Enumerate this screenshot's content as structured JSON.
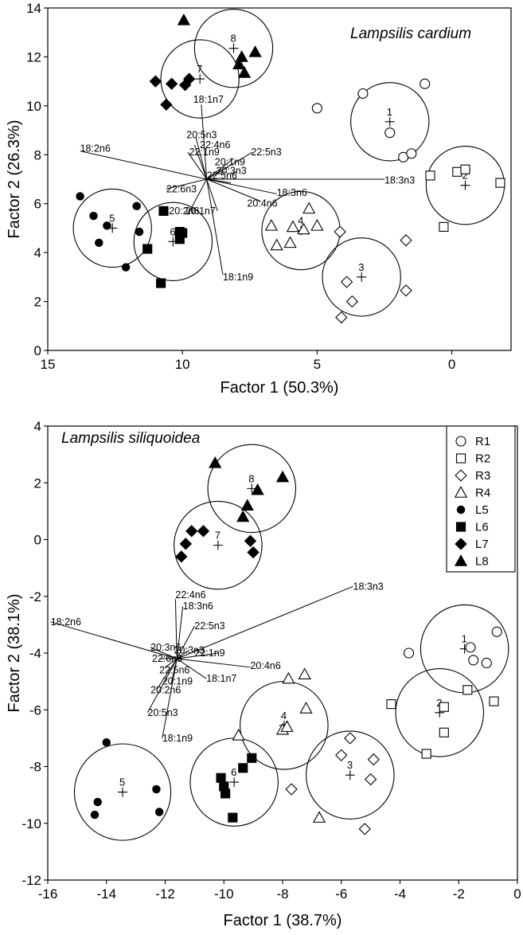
{
  "chart_data": [
    {
      "type": "scatter",
      "title": "Lampsilis cardium",
      "xlabel": "Factor 1 (50.3%)",
      "ylabel": "Factor 2 (26.3%)",
      "xlim": [
        15,
        -2.2
      ],
      "ylim": [
        0,
        14
      ],
      "xticks": [
        {
          "v": 15,
          "label": "15"
        },
        {
          "v": 10,
          "label": "10"
        },
        {
          "v": 5,
          "label": "5"
        },
        {
          "v": 0,
          "label": "0"
        }
      ],
      "yticks": [
        {
          "v": 0,
          "label": "0"
        },
        {
          "v": 2,
          "label": "2"
        },
        {
          "v": 4,
          "label": "4"
        },
        {
          "v": 6,
          "label": "6"
        },
        {
          "v": 8,
          "label": "8"
        },
        {
          "v": 10,
          "label": "10"
        },
        {
          "v": 12,
          "label": "12"
        },
        {
          "v": 14,
          "label": "14"
        }
      ],
      "series": [
        {
          "name": "R1",
          "marker": "circle-open",
          "points": [
            [
              5.0,
              9.9
            ],
            [
              3.3,
              10.5
            ],
            [
              1.0,
              10.9
            ],
            [
              1.8,
              7.9
            ],
            [
              1.5,
              8.05
            ],
            [
              2.3,
              8.9
            ]
          ]
        },
        {
          "name": "R2",
          "marker": "square-open",
          "points": [
            [
              0.8,
              7.15
            ],
            [
              -0.2,
              7.3
            ],
            [
              -0.5,
              7.4
            ],
            [
              -1.8,
              6.85
            ],
            [
              0.3,
              5.05
            ]
          ]
        },
        {
          "name": "R3",
          "marker": "diamond-open",
          "points": [
            [
              4.15,
              4.85
            ],
            [
              1.7,
              4.5
            ],
            [
              3.9,
              2.8
            ],
            [
              3.7,
              2.0
            ],
            [
              1.7,
              2.45
            ],
            [
              4.1,
              1.35
            ]
          ]
        },
        {
          "name": "R4",
          "marker": "triangle-open",
          "points": [
            [
              5.3,
              5.8
            ],
            [
              6.7,
              5.1
            ],
            [
              5.9,
              5.05
            ],
            [
              5.5,
              4.95
            ],
            [
              5.0,
              5.1
            ],
            [
              6.0,
              4.4
            ],
            [
              6.5,
              4.3
            ]
          ]
        },
        {
          "name": "L5",
          "marker": "circle-filled",
          "points": [
            [
              13.8,
              6.3
            ],
            [
              13.3,
              5.5
            ],
            [
              12.8,
              5.1
            ],
            [
              13.1,
              4.4
            ],
            [
              11.7,
              5.9
            ],
            [
              11.6,
              4.85
            ],
            [
              12.1,
              3.4
            ]
          ]
        },
        {
          "name": "L6",
          "marker": "square-filled",
          "points": [
            [
              10.7,
              5.7
            ],
            [
              10.1,
              4.85
            ],
            [
              10.0,
              4.8
            ],
            [
              10.1,
              4.55
            ],
            [
              11.3,
              4.15
            ],
            [
              10.8,
              2.75
            ]
          ]
        },
        {
          "name": "L7",
          "marker": "diamond-filled",
          "points": [
            [
              11.0,
              11.0
            ],
            [
              10.4,
              10.9
            ],
            [
              9.75,
              11.1
            ],
            [
              9.9,
              10.85
            ],
            [
              10.6,
              10.05
            ]
          ]
        },
        {
          "name": "L8",
          "marker": "triangle-filled",
          "points": [
            [
              9.95,
              13.5
            ],
            [
              7.3,
              12.2
            ],
            [
              7.8,
              12.0
            ],
            [
              7.9,
              11.7
            ],
            [
              7.7,
              11.35
            ]
          ]
        }
      ],
      "groups": [
        {
          "label": "1",
          "center": [
            2.3,
            9.35
          ],
          "radius": 1.6
        },
        {
          "label": "2",
          "center": [
            -0.5,
            6.75
          ],
          "radius": 1.6
        },
        {
          "label": "3",
          "center": [
            3.35,
            3.0
          ],
          "radius": 1.6
        },
        {
          "label": "4",
          "center": [
            5.6,
            4.9
          ],
          "radius": 1.6
        },
        {
          "label": "5",
          "center": [
            12.6,
            5.0
          ],
          "radius": 1.6
        },
        {
          "label": "6",
          "center": [
            10.35,
            4.45
          ],
          "radius": 1.6
        },
        {
          "label": "7",
          "center": [
            9.35,
            11.1
          ],
          "radius": 1.6
        },
        {
          "label": "8",
          "center": [
            8.1,
            12.35
          ],
          "radius": 1.6
        }
      ],
      "origin": [
        9.1,
        7.0
      ],
      "vectors": [
        {
          "label": "18:2n6",
          "end": [
            13.8,
            8.15
          ],
          "lpos": [
            13.8,
            8.25
          ]
        },
        {
          "label": "18:1n7",
          "end": [
            9.3,
            10.05
          ],
          "lpos": [
            9.6,
            10.25
          ]
        },
        {
          "label": "20:5n3",
          "end": [
            9.5,
            8.7
          ],
          "lpos": [
            9.85,
            8.8
          ]
        },
        {
          "label": "22:4n6",
          "end": [
            9.55,
            8.4
          ],
          "lpos": [
            9.35,
            8.4
          ]
        },
        {
          "label": "22:1n9",
          "end": [
            9.8,
            8.1
          ],
          "lpos": [
            9.75,
            8.1
          ]
        },
        {
          "label": "22:5n3",
          "end": [
            7.4,
            8.1
          ],
          "lpos": [
            7.45,
            8.1
          ]
        },
        {
          "label": "20:1n9",
          "end": [
            8.1,
            7.85
          ],
          "lpos": [
            8.8,
            7.7
          ]
        },
        {
          "label": "20:3n3",
          "end": [
            8.3,
            7.5
          ],
          "lpos": [
            8.75,
            7.35
          ]
        },
        {
          "label": "22:5n6",
          "end": [
            8.2,
            6.85
          ],
          "lpos": [
            9.1,
            7.15
          ]
        },
        {
          "label": "18:3n3",
          "end": [
            2.5,
            7.0
          ],
          "lpos": [
            2.5,
            6.95
          ]
        },
        {
          "label": "22:6n3",
          "end": [
            10.6,
            6.6
          ],
          "lpos": [
            10.6,
            6.6
          ]
        },
        {
          "label": "18:3n6",
          "end": [
            6.5,
            6.4
          ],
          "lpos": [
            6.5,
            6.45
          ]
        },
        {
          "label": "20:4n6",
          "end": [
            7.1,
            6.1
          ],
          "lpos": [
            7.6,
            6.0
          ]
        },
        {
          "label": "20:2n6",
          "end": [
            9.8,
            5.55
          ],
          "lpos": [
            10.5,
            5.7
          ]
        },
        {
          "label": "20:1n7",
          "end": [
            8.7,
            5.7
          ],
          "lpos": [
            9.9,
            5.7
          ]
        },
        {
          "label": "18:1n9",
          "end": [
            8.5,
            3.1
          ],
          "lpos": [
            8.5,
            3.0
          ]
        }
      ]
    },
    {
      "type": "scatter",
      "title": "Lampsilis siliquoidea",
      "xlabel": "Factor 1 (38.7%)",
      "ylabel": "Factor 2 (38.1%)",
      "xlim": [
        -16,
        0
      ],
      "ylim": [
        -12,
        4
      ],
      "xticks": [
        {
          "v": -16,
          "label": "-16"
        },
        {
          "v": -14,
          "label": "-14"
        },
        {
          "v": -12,
          "label": "-12"
        },
        {
          "v": -10,
          "label": "-10"
        },
        {
          "v": -8,
          "label": "-8"
        },
        {
          "v": -6,
          "label": "-6"
        },
        {
          "v": -4,
          "label": "-4"
        },
        {
          "v": -2,
          "label": "-2"
        },
        {
          "v": 0,
          "label": "0"
        }
      ],
      "yticks": [
        {
          "v": -12,
          "label": "-12"
        },
        {
          "v": -10,
          "label": "-10"
        },
        {
          "v": -8,
          "label": "-8"
        },
        {
          "v": -6,
          "label": "-6"
        },
        {
          "v": -4,
          "label": "-4"
        },
        {
          "v": -2,
          "label": "-2"
        },
        {
          "v": 0,
          "label": "0"
        },
        {
          "v": 2,
          "label": "2"
        },
        {
          "v": 4,
          "label": "4"
        }
      ],
      "legend": {
        "position": "top-right",
        "entries": [
          "R1",
          "R2",
          "R3",
          "R4",
          "L5",
          "L6",
          "L7",
          "L8"
        ]
      },
      "series": [
        {
          "name": "R1",
          "marker": "circle-open",
          "points": [
            [
              -3.7,
              -4.0
            ],
            [
              -1.6,
              -3.8
            ],
            [
              -1.5,
              -4.25
            ],
            [
              -1.05,
              -4.35
            ],
            [
              -0.7,
              -3.25
            ]
          ]
        },
        {
          "name": "R2",
          "marker": "square-open",
          "points": [
            [
              -4.3,
              -5.8
            ],
            [
              -1.7,
              -5.3
            ],
            [
              -0.8,
              -5.7
            ],
            [
              -2.5,
              -5.9
            ],
            [
              -2.5,
              -6.8
            ],
            [
              -3.1,
              -7.55
            ]
          ]
        },
        {
          "name": "R3",
          "marker": "diamond-open",
          "points": [
            [
              -6.0,
              -7.6
            ],
            [
              -5.7,
              -7.0
            ],
            [
              -4.9,
              -7.75
            ],
            [
              -5.0,
              -8.45
            ],
            [
              -7.7,
              -8.8
            ],
            [
              -5.2,
              -10.2
            ]
          ]
        },
        {
          "name": "R4",
          "marker": "triangle-open",
          "points": [
            [
              -7.8,
              -4.9
            ],
            [
              -7.25,
              -4.75
            ],
            [
              -7.2,
              -5.95
            ],
            [
              -8.0,
              -6.7
            ],
            [
              -7.85,
              -6.6
            ],
            [
              -9.5,
              -6.9
            ],
            [
              -6.75,
              -9.8
            ]
          ]
        },
        {
          "name": "L5",
          "marker": "circle-filled",
          "points": [
            [
              -14.0,
              -7.15
            ],
            [
              -14.3,
              -9.25
            ],
            [
              -14.4,
              -9.7
            ],
            [
              -12.3,
              -8.8
            ],
            [
              -12.2,
              -9.6
            ]
          ]
        },
        {
          "name": "L6",
          "marker": "square-filled",
          "points": [
            [
              -9.05,
              -7.7
            ],
            [
              -9.35,
              -8.05
            ],
            [
              -10.1,
              -8.4
            ],
            [
              -10.0,
              -8.7
            ],
            [
              -9.95,
              -8.95
            ],
            [
              -9.7,
              -9.8
            ]
          ]
        },
        {
          "name": "L7",
          "marker": "diamond-filled",
          "points": [
            [
              -11.1,
              0.3
            ],
            [
              -10.7,
              0.3
            ],
            [
              -11.3,
              -0.15
            ],
            [
              -11.45,
              -0.6
            ],
            [
              -9.1,
              -0.05
            ],
            [
              -9.0,
              -0.45
            ]
          ]
        },
        {
          "name": "L8",
          "marker": "triangle-filled",
          "points": [
            [
              -10.3,
              2.7
            ],
            [
              -8.0,
              2.2
            ],
            [
              -8.85,
              1.75
            ],
            [
              -9.2,
              1.2
            ],
            [
              -9.35,
              0.8
            ]
          ]
        }
      ],
      "groups": [
        {
          "label": "1",
          "center": [
            -1.8,
            -3.85
          ],
          "radius": 1.55
        },
        {
          "label": "2",
          "center": [
            -2.65,
            -6.1
          ],
          "radius": 1.55
        },
        {
          "label": "3",
          "center": [
            -5.7,
            -8.3
          ],
          "radius": 1.55
        },
        {
          "label": "4",
          "center": [
            -7.95,
            -6.55
          ],
          "radius": 1.55
        },
        {
          "label": "5",
          "center": [
            -13.45,
            -8.9
          ],
          "radius": 1.7
        },
        {
          "label": "6",
          "center": [
            -9.65,
            -8.55
          ],
          "radius": 1.55
        },
        {
          "label": "7",
          "center": [
            -10.2,
            -0.2
          ],
          "radius": 1.55
        },
        {
          "label": "8",
          "center": [
            -9.05,
            1.8
          ],
          "radius": 1.55
        }
      ],
      "origin": [
        -11.6,
        -4.2
      ],
      "vectors": [
        {
          "label": "18:3n3",
          "end": [
            -5.6,
            -1.65
          ],
          "lpos": [
            -5.6,
            -1.65
          ]
        },
        {
          "label": "18:2n6",
          "end": [
            -15.9,
            -2.9
          ],
          "lpos": [
            -15.9,
            -2.9
          ]
        },
        {
          "label": "22:4n6",
          "end": [
            -11.65,
            -2.1
          ],
          "lpos": [
            -11.65,
            -1.95
          ]
        },
        {
          "label": "18:3n6",
          "end": [
            -11.4,
            -2.35
          ],
          "lpos": [
            -11.4,
            -2.35
          ]
        },
        {
          "label": "22:5n3",
          "end": [
            -11.0,
            -3.05
          ],
          "lpos": [
            -11.0,
            -3.05
          ]
        },
        {
          "label": "20:3n6",
          "end": [
            -12.5,
            -3.8
          ],
          "lpos": [
            -12.5,
            -3.8
          ]
        },
        {
          "label": "20:3n3",
          "end": [
            -11.2,
            -3.9
          ],
          "lpos": [
            -11.7,
            -3.9
          ]
        },
        {
          "label": "22:1n9",
          "end": [
            -10.2,
            -4.0
          ],
          "lpos": [
            -11.0,
            -4.0
          ]
        },
        {
          "label": "22:6n3",
          "end": [
            -12.2,
            -4.2
          ],
          "lpos": [
            -12.45,
            -4.2
          ]
        },
        {
          "label": "20:4n6",
          "end": [
            -9.1,
            -4.5
          ],
          "lpos": [
            -9.1,
            -4.45
          ]
        },
        {
          "label": "18:1n7",
          "end": [
            -10.6,
            -4.9
          ],
          "lpos": [
            -10.6,
            -4.9
          ]
        },
        {
          "label": "22:5n6",
          "end": [
            -12.0,
            -4.5
          ],
          "lpos": [
            -12.2,
            -4.6
          ]
        },
        {
          "label": "20:1n9",
          "end": [
            -11.8,
            -5.1
          ],
          "lpos": [
            -12.1,
            -5.0
          ]
        },
        {
          "label": "20:2n6",
          "end": [
            -12.3,
            -5.3
          ],
          "lpos": [
            -12.5,
            -5.3
          ]
        },
        {
          "label": "20:5n3",
          "end": [
            -12.6,
            -6.1
          ],
          "lpos": [
            -12.6,
            -6.1
          ]
        },
        {
          "label": "18:1n9",
          "end": [
            -12.1,
            -7.0
          ],
          "lpos": [
            -12.1,
            -7.0
          ]
        }
      ]
    }
  ]
}
